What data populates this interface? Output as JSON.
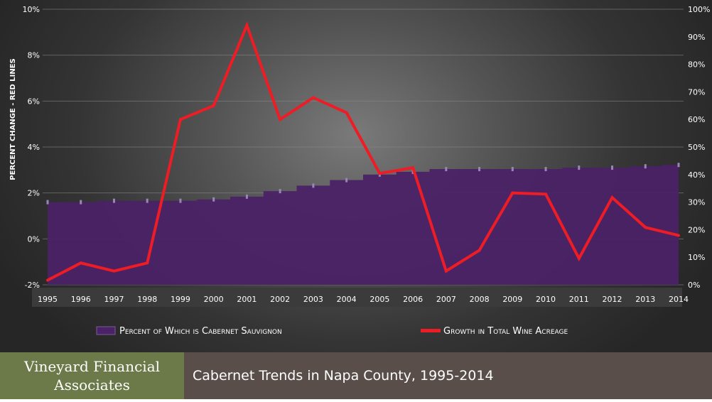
{
  "chart_data": {
    "type": "line",
    "categories": [
      "1995",
      "1996",
      "1997",
      "1998",
      "1999",
      "2000",
      "2001",
      "2002",
      "2003",
      "2004",
      "2005",
      "2006",
      "2007",
      "2008",
      "2009",
      "2010",
      "2011",
      "2012",
      "2013",
      "2014"
    ],
    "series": [
      {
        "name": "Percent of Which is Cabernet Sauvignon",
        "type": "area",
        "axis": "right",
        "color": "#4b2267",
        "values": [
          30,
          30,
          30.5,
          30.5,
          30.5,
          31,
          32,
          34,
          36,
          38,
          40,
          41,
          42,
          42,
          42,
          42,
          42.5,
          42.5,
          43,
          43.5
        ]
      },
      {
        "name": "Growth in Total Wine Acreage",
        "type": "line",
        "axis": "left",
        "color": "#ee1c25",
        "values": [
          -1.8,
          -1.05,
          -1.4,
          -1.05,
          5.2,
          5.8,
          9.3,
          5.2,
          6.15,
          5.5,
          2.85,
          3.1,
          -1.4,
          -0.5,
          2.0,
          1.95,
          -0.85,
          1.8,
          0.5,
          0.15
        ]
      }
    ],
    "y_left": {
      "label": "PERCENT CHANGE - RED LINES",
      "ylim": [
        -2,
        10
      ],
      "ticks": [
        -2,
        0,
        2,
        4,
        6,
        8,
        10
      ]
    },
    "y_right": {
      "ylim": [
        0,
        100
      ],
      "ticks": [
        0,
        10,
        20,
        30,
        40,
        50,
        60,
        70,
        80,
        90,
        100
      ]
    },
    "grid": true,
    "legend_position": "bottom"
  },
  "footer": {
    "brand_line1": "Vineyard Financial",
    "brand_line2": "Associates",
    "caption": "Cabernet Trends in Napa County, 1995-2014"
  }
}
